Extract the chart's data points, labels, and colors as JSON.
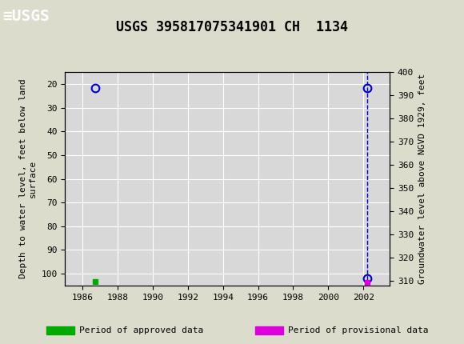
{
  "title": "USGS 395817075341901 CH  1134",
  "header_bg_color": "#1a6b3c",
  "plot_bg_color": "#d8d8d8",
  "fig_bg_color": "#dcdccc",
  "xlabel": "",
  "ylabel_left": "Depth to water level, feet below land\nsurface",
  "ylabel_right": "Groundwater level above NGVD 1929, feet",
  "xlim": [
    1985.0,
    2003.5
  ],
  "ylim_left_top": 15,
  "ylim_left_bottom": 105,
  "ylim_right_top": 400,
  "ylim_right_bottom": 308,
  "xticks": [
    1986,
    1988,
    1990,
    1992,
    1994,
    1996,
    1998,
    2000,
    2002
  ],
  "yticks_left": [
    20,
    30,
    40,
    50,
    60,
    70,
    80,
    90,
    100
  ],
  "yticks_right": [
    310,
    320,
    330,
    340,
    350,
    360,
    370,
    380,
    390,
    400
  ],
  "data_points": [
    {
      "x": 1986.7,
      "y_depth": 21.5,
      "type": "circle_open",
      "color": "#0000cc"
    },
    {
      "x": 1986.7,
      "y_depth": 103.5,
      "type": "square_filled",
      "color": "#00aa00"
    },
    {
      "x": 2002.2,
      "y_depth": 21.5,
      "type": "circle_open",
      "color": "#0000cc"
    },
    {
      "x": 2002.2,
      "y_depth": 102.0,
      "type": "circle_open",
      "color": "#0000cc"
    },
    {
      "x": 2002.2,
      "y_depth": 103.8,
      "type": "square_filled",
      "color": "#dd00dd"
    }
  ],
  "vertical_line_x": 2002.2,
  "vertical_line_color": "#0000cc",
  "legend_items": [
    {
      "label": "Period of approved data",
      "color": "#00aa00"
    },
    {
      "label": "Period of provisional data",
      "color": "#dd00dd"
    }
  ],
  "title_fontsize": 12,
  "axis_label_fontsize": 8,
  "tick_fontsize": 8,
  "legend_fontsize": 8
}
